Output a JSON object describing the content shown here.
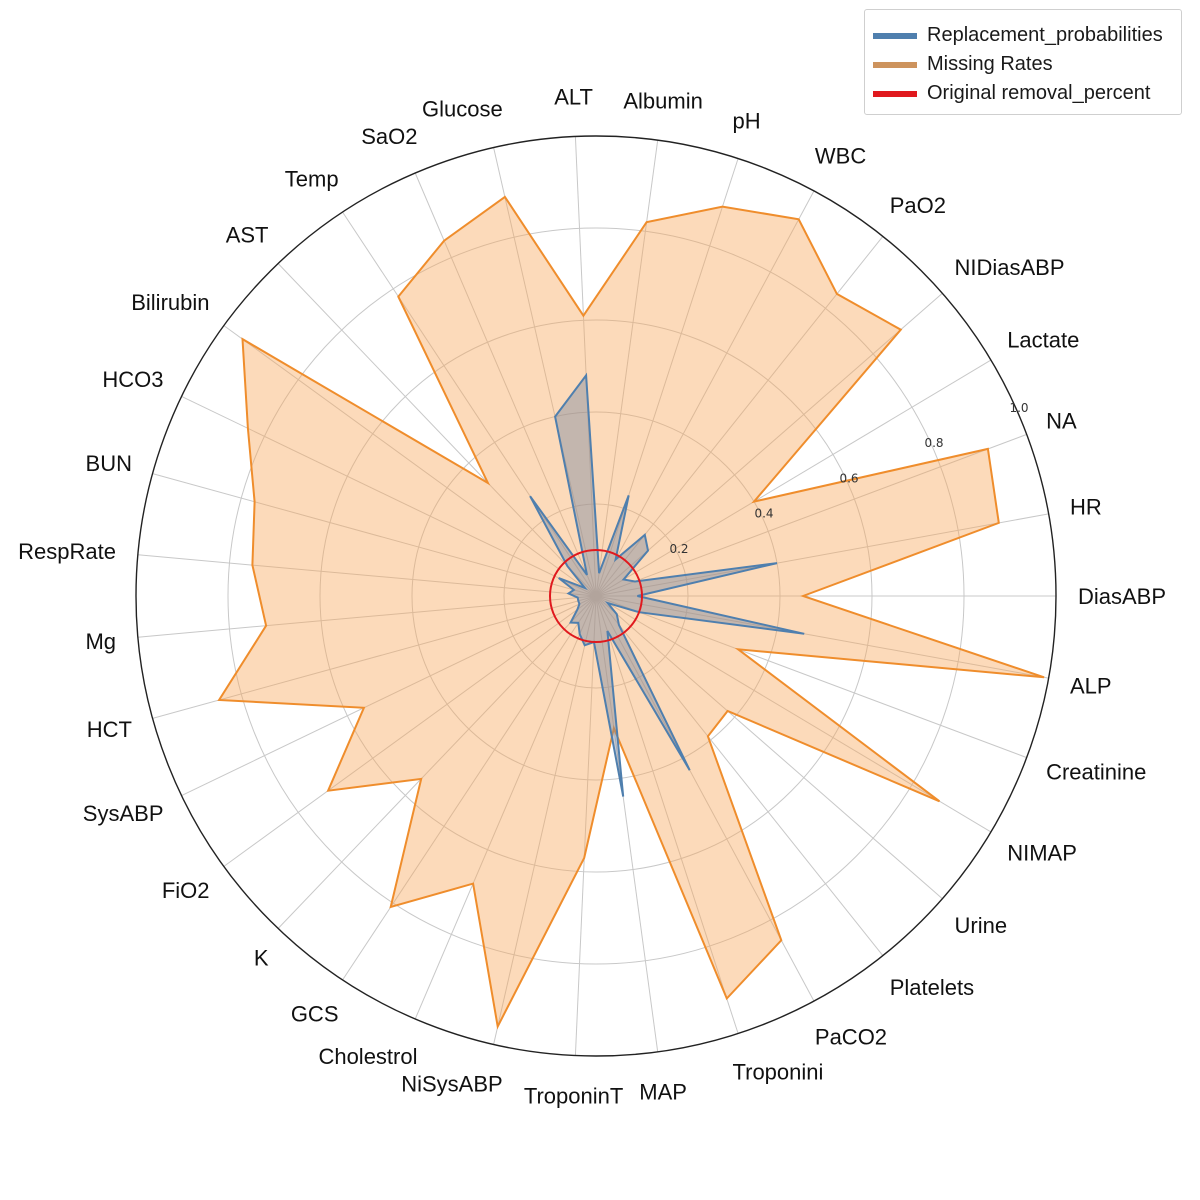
{
  "chart_data": {
    "type": "radar",
    "categories": [
      "DiasABP",
      "HR",
      "NA",
      "Lactate",
      "NIDiasABP",
      "PaO2",
      "WBC",
      "pH",
      "Albumin",
      "ALT",
      "Glucose",
      "SaO2",
      "Temp",
      "AST",
      "Bilirubin",
      "HCO3",
      "BUN",
      "RespRate",
      "Mg",
      "HCT",
      "SysABP",
      "FiO2",
      "K",
      "GCS",
      "Cholestrol",
      "NiSysABP",
      "TroponinT",
      "MAP",
      "Troponini",
      "PaCO2",
      "Platelets",
      "Urine",
      "NIMAP",
      "Creatinine",
      "ALP"
    ],
    "radial_ticks": [
      "0.2",
      "0.4",
      "0.6",
      "0.8",
      "1.0"
    ],
    "rlim": [
      0,
      1.0
    ],
    "grid": true,
    "series": [
      {
        "name": "Replacement_probabilities",
        "color": "#4f7fae",
        "values": [
          0.09,
          0.4,
          0.09,
          0.07,
          0.15,
          0.17,
          0.09,
          0.23,
          0.05,
          0.48,
          0.4,
          0.05,
          0.26,
          0.09,
          0.03,
          0.09,
          0.05,
          0.06,
          0.04,
          0.04,
          0.04,
          0.05,
          0.08,
          0.07,
          0.09,
          0.11,
          0.1,
          0.44,
          0.08,
          0.43,
          0.08,
          0.06,
          0.03,
          0.1,
          0.46
        ]
      },
      {
        "name": "Missing Rates",
        "color": "#ef8d2c",
        "values": [
          0.45,
          0.89,
          0.91,
          0.4,
          0.88,
          0.84,
          0.93,
          0.89,
          0.82,
          0.61,
          0.89,
          0.84,
          0.78,
          0.34,
          0.95,
          0.84,
          0.77,
          0.75,
          0.72,
          0.85,
          0.56,
          0.72,
          0.55,
          0.81,
          0.68,
          0.96,
          0.57,
          0.29,
          0.92,
          0.85,
          0.39,
          0.38,
          0.87,
          0.33,
          0.99
        ]
      },
      {
        "name": "Original removal_percent",
        "color": "#e0191e",
        "value": 0.1
      }
    ],
    "legend_position": "top-right"
  }
}
